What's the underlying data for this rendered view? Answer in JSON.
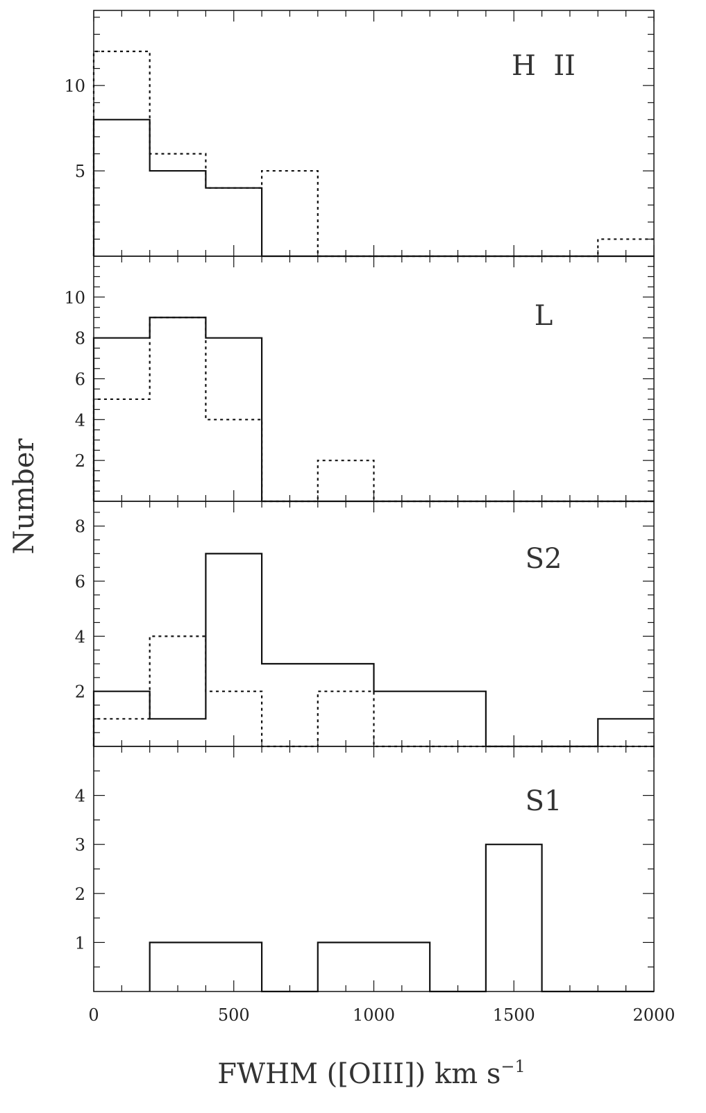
{
  "chart_data": {
    "type": "histogram",
    "figure": {
      "xlabel_main": "FWHM ([OIII]) km s",
      "xlabel_sup": "−1",
      "ylabel": "Number",
      "xlim": [
        0,
        2000
      ],
      "xticks": [
        0,
        500,
        1000,
        1500,
        2000
      ],
      "xticklabels": [
        "0",
        "500",
        "1000",
        "1500",
        "2000"
      ],
      "bin_width": 200
    },
    "panels": [
      {
        "label": "H  II",
        "ylim": [
          0,
          14.4
        ],
        "yticks": [
          5,
          10
        ],
        "yticklabels": [
          "5",
          "10"
        ],
        "series": [
          {
            "style": "solid",
            "bins": [
              0,
              200,
              400,
              600,
              800,
              1000,
              1200,
              1400,
              1600,
              1800,
              2000
            ],
            "counts": [
              8,
              5,
              4,
              0,
              0,
              0,
              0,
              0,
              0,
              0
            ]
          },
          {
            "style": "dotted",
            "bins": [
              0,
              200,
              400,
              600,
              800,
              1000,
              1200,
              1400,
              1600,
              1800,
              2000
            ],
            "counts": [
              12,
              6,
              4,
              5,
              0,
              0,
              0,
              0,
              0,
              1
            ]
          }
        ]
      },
      {
        "label": "L",
        "ylim": [
          0,
          12
        ],
        "yticks": [
          2,
          4,
          6,
          8,
          10
        ],
        "yticklabels": [
          "2",
          "4",
          "6",
          "8",
          "10"
        ],
        "series": [
          {
            "style": "solid",
            "bins": [
              0,
              200,
              400,
              600,
              800,
              1000,
              1200,
              1400,
              1600,
              1800,
              2000
            ],
            "counts": [
              8,
              9,
              8,
              0,
              0,
              0,
              0,
              0,
              0,
              0
            ]
          },
          {
            "style": "dotted",
            "bins": [
              0,
              200,
              400,
              600,
              800,
              1000,
              1200,
              1400,
              1600,
              1800,
              2000
            ],
            "counts": [
              5,
              9,
              4,
              0,
              2,
              0,
              0,
              0,
              0,
              0
            ]
          }
        ]
      },
      {
        "label": "S2",
        "ylim": [
          0,
          8.9
        ],
        "yticks": [
          2,
          4,
          6,
          8
        ],
        "yticklabels": [
          "2",
          "4",
          "6",
          "8"
        ],
        "series": [
          {
            "style": "solid",
            "bins": [
              0,
              200,
              400,
              600,
              800,
              1000,
              1200,
              1400,
              1600,
              1800,
              2000
            ],
            "counts": [
              2,
              1,
              7,
              3,
              3,
              2,
              2,
              0,
              0,
              1
            ]
          },
          {
            "style": "dotted",
            "bins": [
              0,
              200,
              400,
              600,
              800,
              1000,
              1200,
              1400,
              1600,
              1800,
              2000
            ],
            "counts": [
              1,
              4,
              2,
              0,
              2,
              0,
              0,
              0,
              0,
              0
            ]
          }
        ]
      },
      {
        "label": "S1",
        "ylim": [
          0,
          5
        ],
        "yticks": [
          1,
          2,
          3,
          4
        ],
        "yticklabels": [
          "1",
          "2",
          "3",
          "4"
        ],
        "series": [
          {
            "style": "solid",
            "bins": [
              0,
              200,
              400,
              600,
              800,
              1000,
              1200,
              1400,
              1600,
              1800,
              2000
            ],
            "counts": [
              0,
              1,
              1,
              0,
              1,
              1,
              0,
              3,
              0,
              0
            ]
          }
        ]
      }
    ]
  },
  "colors": {
    "axes": "#111111",
    "text": "#333333",
    "background": "#ffffff"
  }
}
